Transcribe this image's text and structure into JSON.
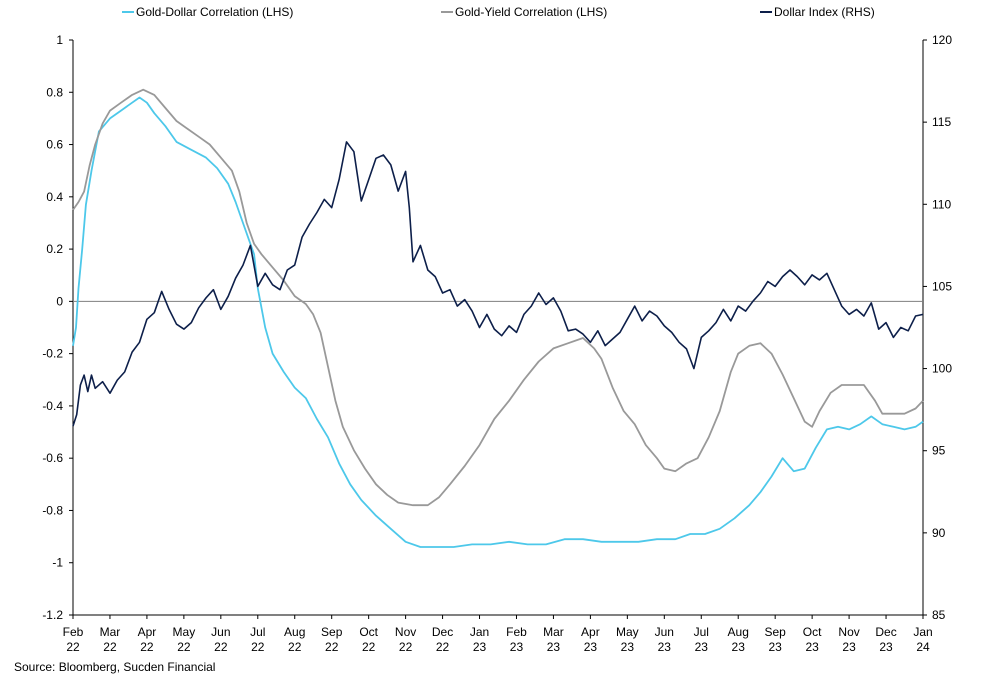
{
  "chart_data": {
    "type": "line",
    "title": "",
    "source": "Source: Bloomberg, Sucden Financial",
    "x_ticks": [
      {
        "month": "Feb",
        "year": "22"
      },
      {
        "month": "Mar",
        "year": "22"
      },
      {
        "month": "Apr",
        "year": "22"
      },
      {
        "month": "May",
        "year": "22"
      },
      {
        "month": "Jun",
        "year": "22"
      },
      {
        "month": "Jul",
        "year": "22"
      },
      {
        "month": "Aug",
        "year": "22"
      },
      {
        "month": "Sep",
        "year": "22"
      },
      {
        "month": "Oct",
        "year": "22"
      },
      {
        "month": "Nov",
        "year": "22"
      },
      {
        "month": "Dec",
        "year": "22"
      },
      {
        "month": "Jan",
        "year": "23"
      },
      {
        "month": "Feb",
        "year": "23"
      },
      {
        "month": "Mar",
        "year": "23"
      },
      {
        "month": "Apr",
        "year": "23"
      },
      {
        "month": "May",
        "year": "23"
      },
      {
        "month": "Jun",
        "year": "23"
      },
      {
        "month": "Jul",
        "year": "23"
      },
      {
        "month": "Aug",
        "year": "23"
      },
      {
        "month": "Sep",
        "year": "23"
      },
      {
        "month": "Oct",
        "year": "23"
      },
      {
        "month": "Nov",
        "year": "23"
      },
      {
        "month": "Dec",
        "year": "23"
      },
      {
        "month": "Jan",
        "year": "24"
      }
    ],
    "y_left": {
      "min": -1.2,
      "max": 1,
      "step": 0.2,
      "ticks": [
        "1",
        "0.8",
        "0.6",
        "0.4",
        "0.2",
        "0",
        "-0.2",
        "-0.4",
        "-0.6",
        "-0.8",
        "-1",
        "-1.2"
      ]
    },
    "y_right": {
      "min": 85,
      "max": 120,
      "step": 5,
      "ticks": [
        "120",
        "115",
        "110",
        "105",
        "100",
        "95",
        "90",
        "85"
      ]
    },
    "zero_line": true,
    "legend_position": "top",
    "series": [
      {
        "name": "Gold-Dollar Correlation (LHS)",
        "axis": "left",
        "color": "#4dc8ea",
        "points": [
          [
            0,
            -0.17
          ],
          [
            0.08,
            -0.1
          ],
          [
            0.15,
            0.05
          ],
          [
            0.25,
            0.2
          ],
          [
            0.35,
            0.37
          ],
          [
            0.5,
            0.5
          ],
          [
            0.7,
            0.65
          ],
          [
            1,
            0.7
          ],
          [
            1.3,
            0.73
          ],
          [
            1.6,
            0.76
          ],
          [
            1.8,
            0.78
          ],
          [
            2.0,
            0.76
          ],
          [
            2.2,
            0.72
          ],
          [
            2.5,
            0.67
          ],
          [
            2.8,
            0.61
          ],
          [
            3.2,
            0.58
          ],
          [
            3.6,
            0.55
          ],
          [
            3.9,
            0.51
          ],
          [
            4.2,
            0.45
          ],
          [
            4.4,
            0.38
          ],
          [
            4.6,
            0.3
          ],
          [
            4.75,
            0.24
          ],
          [
            4.9,
            0.18
          ],
          [
            5.0,
            0.05
          ],
          [
            5.2,
            -0.1
          ],
          [
            5.4,
            -0.2
          ],
          [
            5.7,
            -0.27
          ],
          [
            6.0,
            -0.33
          ],
          [
            6.3,
            -0.37
          ],
          [
            6.6,
            -0.45
          ],
          [
            6.9,
            -0.52
          ],
          [
            7.2,
            -0.62
          ],
          [
            7.5,
            -0.7
          ],
          [
            7.8,
            -0.76
          ],
          [
            8.2,
            -0.82
          ],
          [
            8.6,
            -0.87
          ],
          [
            9.0,
            -0.92
          ],
          [
            9.4,
            -0.94
          ],
          [
            9.8,
            -0.94
          ],
          [
            10.3,
            -0.94
          ],
          [
            10.8,
            -0.93
          ],
          [
            11.3,
            -0.93
          ],
          [
            11.8,
            -0.92
          ],
          [
            12.3,
            -0.93
          ],
          [
            12.8,
            -0.93
          ],
          [
            13.3,
            -0.91
          ],
          [
            13.8,
            -0.91
          ],
          [
            14.3,
            -0.92
          ],
          [
            14.8,
            -0.92
          ],
          [
            15.3,
            -0.92
          ],
          [
            15.8,
            -0.91
          ],
          [
            16.3,
            -0.91
          ],
          [
            16.7,
            -0.89
          ],
          [
            17.1,
            -0.89
          ],
          [
            17.5,
            -0.87
          ],
          [
            17.9,
            -0.83
          ],
          [
            18.3,
            -0.78
          ],
          [
            18.6,
            -0.73
          ],
          [
            18.9,
            -0.67
          ],
          [
            19.2,
            -0.6
          ],
          [
            19.5,
            -0.65
          ],
          [
            19.8,
            -0.64
          ],
          [
            20.1,
            -0.56
          ],
          [
            20.4,
            -0.49
          ],
          [
            20.7,
            -0.48
          ],
          [
            21.0,
            -0.49
          ],
          [
            21.3,
            -0.47
          ],
          [
            21.6,
            -0.44
          ],
          [
            21.9,
            -0.47
          ],
          [
            22.2,
            -0.48
          ],
          [
            22.5,
            -0.49
          ],
          [
            22.8,
            -0.48
          ],
          [
            23.0,
            -0.46
          ]
        ]
      },
      {
        "name": "Gold-Yield Correlation (LHS)",
        "axis": "left",
        "color": "#999999",
        "points": [
          [
            0,
            0.35
          ],
          [
            0.15,
            0.38
          ],
          [
            0.3,
            0.42
          ],
          [
            0.45,
            0.52
          ],
          [
            0.6,
            0.6
          ],
          [
            0.8,
            0.68
          ],
          [
            1.0,
            0.73
          ],
          [
            1.3,
            0.76
          ],
          [
            1.6,
            0.79
          ],
          [
            1.9,
            0.81
          ],
          [
            2.2,
            0.79
          ],
          [
            2.5,
            0.74
          ],
          [
            2.8,
            0.69
          ],
          [
            3.1,
            0.66
          ],
          [
            3.4,
            0.63
          ],
          [
            3.7,
            0.6
          ],
          [
            4.0,
            0.55
          ],
          [
            4.3,
            0.5
          ],
          [
            4.5,
            0.42
          ],
          [
            4.7,
            0.3
          ],
          [
            4.9,
            0.22
          ],
          [
            5.1,
            0.18
          ],
          [
            5.4,
            0.13
          ],
          [
            5.7,
            0.08
          ],
          [
            6.0,
            0.02
          ],
          [
            6.3,
            -0.01
          ],
          [
            6.5,
            -0.05
          ],
          [
            6.7,
            -0.12
          ],
          [
            6.9,
            -0.25
          ],
          [
            7.1,
            -0.38
          ],
          [
            7.3,
            -0.48
          ],
          [
            7.6,
            -0.57
          ],
          [
            7.9,
            -0.64
          ],
          [
            8.2,
            -0.7
          ],
          [
            8.5,
            -0.74
          ],
          [
            8.8,
            -0.77
          ],
          [
            9.2,
            -0.78
          ],
          [
            9.6,
            -0.78
          ],
          [
            9.9,
            -0.75
          ],
          [
            10.2,
            -0.7
          ],
          [
            10.6,
            -0.63
          ],
          [
            11.0,
            -0.55
          ],
          [
            11.4,
            -0.45
          ],
          [
            11.8,
            -0.38
          ],
          [
            12.2,
            -0.3
          ],
          [
            12.6,
            -0.23
          ],
          [
            13.0,
            -0.18
          ],
          [
            13.4,
            -0.16
          ],
          [
            13.8,
            -0.14
          ],
          [
            14.1,
            -0.18
          ],
          [
            14.3,
            -0.22
          ],
          [
            14.6,
            -0.33
          ],
          [
            14.9,
            -0.42
          ],
          [
            15.2,
            -0.47
          ],
          [
            15.5,
            -0.55
          ],
          [
            15.8,
            -0.6
          ],
          [
            16.0,
            -0.64
          ],
          [
            16.3,
            -0.65
          ],
          [
            16.6,
            -0.62
          ],
          [
            16.9,
            -0.6
          ],
          [
            17.2,
            -0.52
          ],
          [
            17.5,
            -0.42
          ],
          [
            17.8,
            -0.27
          ],
          [
            18.0,
            -0.2
          ],
          [
            18.3,
            -0.17
          ],
          [
            18.6,
            -0.16
          ],
          [
            18.9,
            -0.2
          ],
          [
            19.2,
            -0.28
          ],
          [
            19.5,
            -0.37
          ],
          [
            19.8,
            -0.46
          ],
          [
            20.0,
            -0.48
          ],
          [
            20.2,
            -0.42
          ],
          [
            20.5,
            -0.35
          ],
          [
            20.8,
            -0.32
          ],
          [
            21.1,
            -0.32
          ],
          [
            21.4,
            -0.32
          ],
          [
            21.7,
            -0.38
          ],
          [
            21.9,
            -0.43
          ],
          [
            22.2,
            -0.43
          ],
          [
            22.5,
            -0.43
          ],
          [
            22.8,
            -0.41
          ],
          [
            23.0,
            -0.38
          ]
        ]
      },
      {
        "name": "Dollar Index (RHS)",
        "axis": "right",
        "color": "#0d1f4a",
        "points": [
          [
            0,
            96.5
          ],
          [
            0.1,
            97.2
          ],
          [
            0.2,
            99.0
          ],
          [
            0.3,
            99.6
          ],
          [
            0.4,
            98.6
          ],
          [
            0.5,
            99.6
          ],
          [
            0.6,
            98.8
          ],
          [
            0.8,
            99.2
          ],
          [
            1.0,
            98.5
          ],
          [
            1.2,
            99.3
          ],
          [
            1.4,
            99.8
          ],
          [
            1.6,
            101.0
          ],
          [
            1.8,
            101.6
          ],
          [
            2.0,
            103.0
          ],
          [
            2.2,
            103.4
          ],
          [
            2.4,
            104.7
          ],
          [
            2.6,
            103.6
          ],
          [
            2.8,
            102.7
          ],
          [
            3.0,
            102.4
          ],
          [
            3.2,
            102.8
          ],
          [
            3.4,
            103.7
          ],
          [
            3.6,
            104.3
          ],
          [
            3.8,
            104.8
          ],
          [
            4.0,
            103.6
          ],
          [
            4.2,
            104.4
          ],
          [
            4.4,
            105.5
          ],
          [
            4.6,
            106.3
          ],
          [
            4.8,
            107.5
          ],
          [
            5.0,
            105.0
          ],
          [
            5.2,
            105.8
          ],
          [
            5.4,
            105.1
          ],
          [
            5.6,
            104.8
          ],
          [
            5.8,
            106.0
          ],
          [
            6.0,
            106.3
          ],
          [
            6.2,
            108.0
          ],
          [
            6.4,
            108.8
          ],
          [
            6.6,
            109.5
          ],
          [
            6.8,
            110.3
          ],
          [
            7.0,
            109.8
          ],
          [
            7.2,
            111.5
          ],
          [
            7.4,
            113.8
          ],
          [
            7.6,
            113.2
          ],
          [
            7.8,
            110.2
          ],
          [
            8.0,
            111.5
          ],
          [
            8.2,
            112.8
          ],
          [
            8.4,
            113.0
          ],
          [
            8.6,
            112.4
          ],
          [
            8.8,
            110.8
          ],
          [
            9.0,
            112.0
          ],
          [
            9.1,
            109.8
          ],
          [
            9.2,
            106.5
          ],
          [
            9.4,
            107.5
          ],
          [
            9.6,
            106.0
          ],
          [
            9.8,
            105.6
          ],
          [
            10.0,
            104.6
          ],
          [
            10.2,
            104.8
          ],
          [
            10.4,
            103.8
          ],
          [
            10.6,
            104.2
          ],
          [
            10.8,
            103.5
          ],
          [
            11.0,
            102.5
          ],
          [
            11.2,
            103.3
          ],
          [
            11.4,
            102.4
          ],
          [
            11.6,
            102.0
          ],
          [
            11.8,
            102.6
          ],
          [
            12.0,
            102.2
          ],
          [
            12.2,
            103.3
          ],
          [
            12.4,
            103.8
          ],
          [
            12.6,
            104.6
          ],
          [
            12.8,
            103.9
          ],
          [
            13.0,
            104.3
          ],
          [
            13.2,
            103.5
          ],
          [
            13.4,
            102.3
          ],
          [
            13.6,
            102.4
          ],
          [
            13.8,
            102.1
          ],
          [
            14.0,
            101.6
          ],
          [
            14.2,
            102.3
          ],
          [
            14.4,
            101.4
          ],
          [
            14.6,
            101.8
          ],
          [
            14.8,
            102.2
          ],
          [
            15.0,
            103.0
          ],
          [
            15.2,
            103.8
          ],
          [
            15.4,
            102.9
          ],
          [
            15.6,
            103.5
          ],
          [
            15.8,
            103.2
          ],
          [
            16.0,
            102.6
          ],
          [
            16.2,
            102.2
          ],
          [
            16.4,
            101.6
          ],
          [
            16.6,
            101.2
          ],
          [
            16.8,
            100.0
          ],
          [
            17.0,
            101.9
          ],
          [
            17.2,
            102.3
          ],
          [
            17.4,
            102.8
          ],
          [
            17.6,
            103.6
          ],
          [
            17.8,
            102.9
          ],
          [
            18.0,
            103.8
          ],
          [
            18.2,
            103.5
          ],
          [
            18.4,
            104.1
          ],
          [
            18.6,
            104.6
          ],
          [
            18.8,
            105.3
          ],
          [
            19.0,
            105.0
          ],
          [
            19.2,
            105.6
          ],
          [
            19.4,
            106.0
          ],
          [
            19.6,
            105.6
          ],
          [
            19.8,
            105.1
          ],
          [
            20.0,
            105.7
          ],
          [
            20.2,
            105.4
          ],
          [
            20.4,
            105.8
          ],
          [
            20.6,
            104.8
          ],
          [
            20.8,
            103.8
          ],
          [
            21.0,
            103.3
          ],
          [
            21.2,
            103.6
          ],
          [
            21.4,
            103.2
          ],
          [
            21.6,
            104.0
          ],
          [
            21.8,
            102.4
          ],
          [
            22.0,
            102.8
          ],
          [
            22.2,
            101.9
          ],
          [
            22.4,
            102.5
          ],
          [
            22.6,
            102.3
          ],
          [
            22.8,
            103.2
          ],
          [
            23.0,
            103.3
          ]
        ]
      }
    ]
  }
}
